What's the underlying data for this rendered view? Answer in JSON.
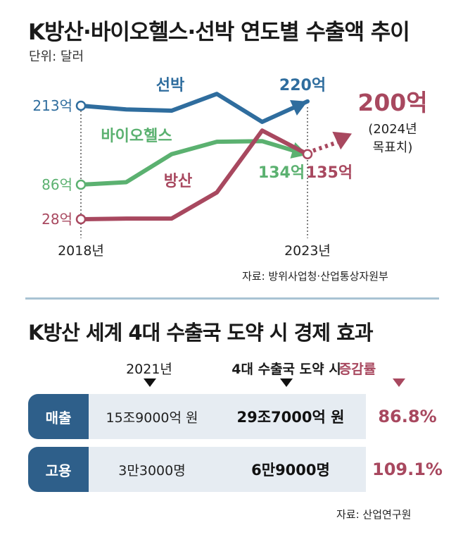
{
  "header": {
    "title": "K방산·바이오헬스·선박 연도별 수출액 추이",
    "unit": "단위: 달러",
    "source": "자료: 방위사업청·산업통상자원부"
  },
  "chart_data": {
    "type": "line",
    "x": [
      2018,
      2019,
      2020,
      2021,
      2022,
      2023
    ],
    "tick_labels": [
      "2018년",
      "2023년"
    ],
    "unit": "억 달러",
    "series": [
      {
        "name": "선박",
        "color": "#2f6d9e",
        "values": [
          213,
          207,
          205,
          232,
          187,
          220
        ],
        "start_label": "213억",
        "end_label": "220억"
      },
      {
        "name": "바이오헬스",
        "color": "#5bb170",
        "values": [
          86,
          90,
          135,
          155,
          156,
          134
        ],
        "start_label": "86억",
        "end_label": "134억"
      },
      {
        "name": "방산",
        "color": "#a8485f",
        "values": [
          28,
          29,
          29,
          73,
          173,
          135
        ],
        "start_label": "28억",
        "end_label": "135억"
      }
    ],
    "target": {
      "series": "방산",
      "year": 2024,
      "value": 200,
      "label": "200억",
      "note_line1": "(2024년",
      "note_line2": "목표치)"
    }
  },
  "table": {
    "title": "K방산 세계 4대 수출국 도약 시 경제 효과",
    "headers": {
      "y2021": "2021년",
      "target": "4대 수출국 도약 시",
      "rate": "증감률"
    },
    "rows": [
      {
        "label": "매출",
        "y2021": "15조9000억 원",
        "target": "29조7000억 원",
        "rate": "86.8%"
      },
      {
        "label": "고용",
        "y2021": "3만3000명",
        "target": "6만9000명",
        "rate": "109.1%"
      }
    ],
    "source": "자료: 산업연구원"
  }
}
